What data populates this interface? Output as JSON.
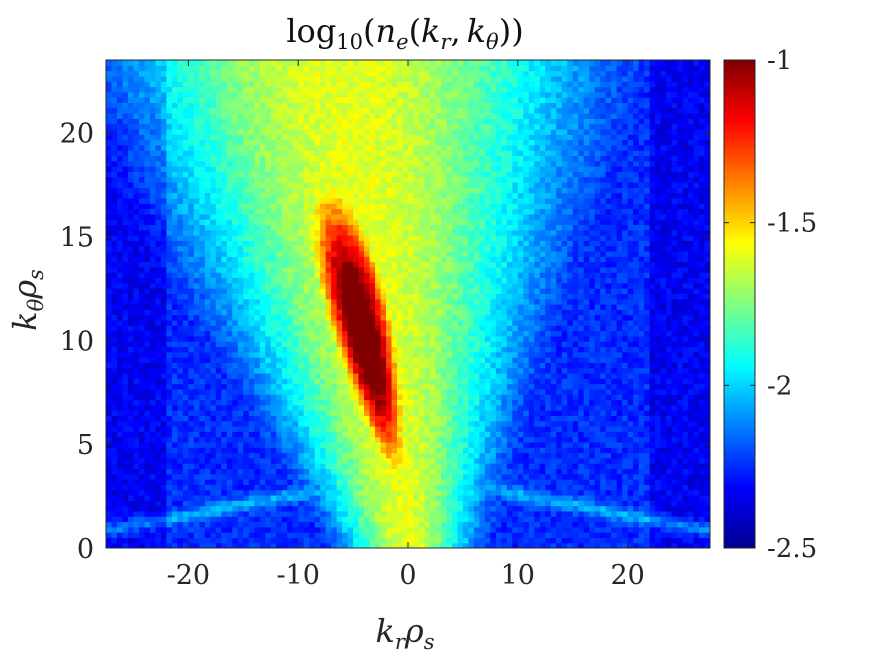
{
  "chart_data": {
    "type": "heatmap",
    "title": "log10(ne(kr,kθ))",
    "title_parts": {
      "fn": "log",
      "sub": "10",
      "open": "(",
      "var": "n",
      "var_sub": "e",
      "args_open": "(",
      "arg1": "k",
      "arg1_sub": "r",
      "comma": ",",
      "arg2": "k",
      "arg2_sub": "θ",
      "close": "))"
    },
    "xlabel": "krρs",
    "xlabel_parts": {
      "a": "k",
      "a_sub": "r",
      "b": "ρ",
      "b_sub": "s"
    },
    "ylabel": "kθρs",
    "ylabel_parts": {
      "a": "k",
      "a_sub": "θ",
      "b": "ρ",
      "b_sub": "s"
    },
    "xlim": [
      -27.5,
      27.5
    ],
    "ylim": [
      0,
      23.5
    ],
    "x_ticks": [
      -20,
      -10,
      0,
      10,
      20
    ],
    "x_tick_labels": [
      "-20",
      "-10",
      "0",
      "10",
      "20"
    ],
    "y_ticks": [
      0,
      5,
      10,
      15,
      20
    ],
    "y_tick_labels": [
      "0",
      "5",
      "10",
      "15",
      "20"
    ],
    "colormap": "jet",
    "clim": [
      -2.5,
      -1
    ],
    "colorbar_ticks": [
      -1,
      -1.5,
      -2,
      -2.5
    ],
    "colorbar_tick_labels": [
      "-1",
      "-1.5",
      "-2",
      "-2.5"
    ],
    "grid": false,
    "features": [
      {
        "description": "elongated maximum",
        "kr_range": [
          -8,
          2
        ],
        "ktheta_range": [
          3,
          18
        ],
        "peak_kr": -4.5,
        "peak_ktheta": 11.5,
        "peak_value": -1.05
      },
      {
        "description": "faint diagonal streaks at low ktheta",
        "from": [
          -25,
          3.5
        ],
        "to": [
          25,
          3.5
        ],
        "value": -2.2
      }
    ]
  },
  "colors": {
    "text": "#262626",
    "axis": "#262626",
    "background": "#ffffff"
  }
}
